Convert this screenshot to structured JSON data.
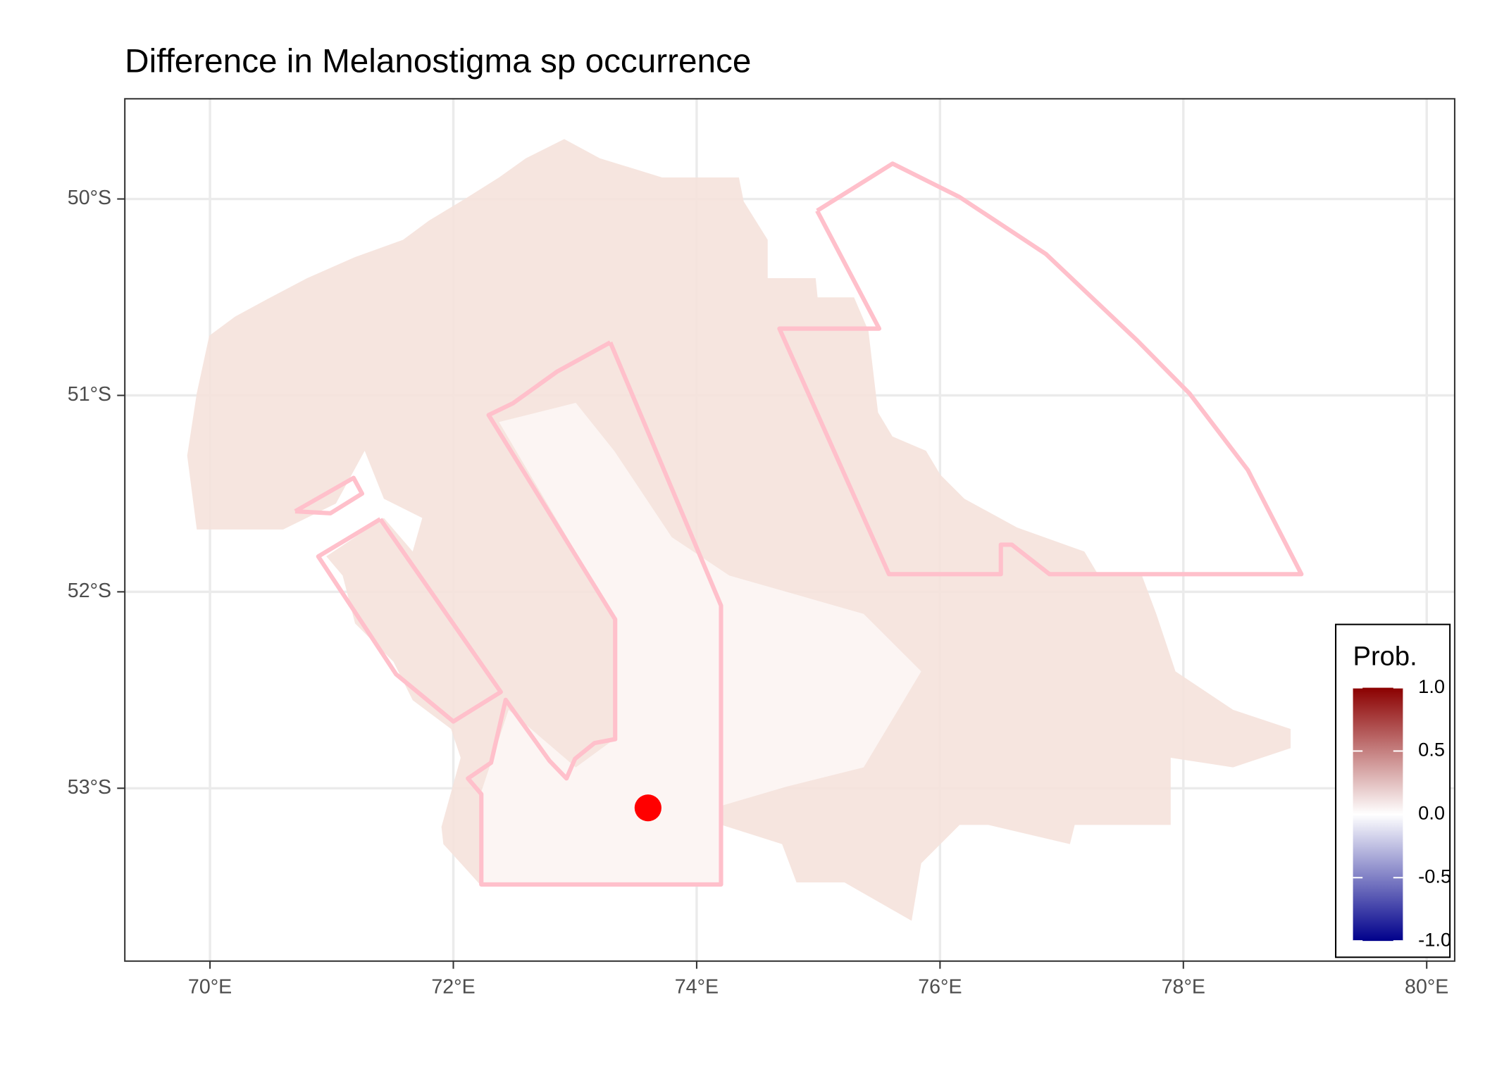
{
  "chart_data": {
    "type": "map",
    "title": "Difference in  Melanostigma sp occurrence",
    "xlim": [
      69.3,
      80.23
    ],
    "ylim": [
      -53.88,
      -49.49
    ],
    "xticks": [
      {
        "value": 70,
        "label": "70°E"
      },
      {
        "value": 72,
        "label": "72°E"
      },
      {
        "value": 74,
        "label": "74°E"
      },
      {
        "value": 76,
        "label": "76°E"
      },
      {
        "value": 78,
        "label": "78°E"
      },
      {
        "value": 80,
        "label": "80°E"
      }
    ],
    "yticks": [
      {
        "value": -50,
        "label": "50°S"
      },
      {
        "value": -51,
        "label": "51°S"
      },
      {
        "value": -52,
        "label": "52°S"
      },
      {
        "value": -53,
        "label": "53°S"
      }
    ],
    "grid": true,
    "outline_color": "#ffc0cb",
    "outlines": [
      {
        "lon": [
          74.99,
          75.61,
          76.16,
          76.87,
          77.62,
          78.05,
          78.53,
          78.97,
          76.9,
          76.59,
          76.5,
          76.5,
          75.58,
          74.68,
          75.5,
          74.99
        ],
        "lat": [
          -50.06,
          -49.82,
          -49.99,
          -50.28,
          -50.72,
          -50.99,
          -51.38,
          -51.91,
          -51.91,
          -51.76,
          -51.76,
          -51.91,
          -51.91,
          -50.66,
          -50.66,
          -50.06
        ]
      },
      {
        "lon": [
          73.29,
          74.2,
          74.2,
          72.23,
          72.23,
          72.12,
          72.31,
          72.43,
          72.79,
          72.93,
          73.0,
          73.16,
          73.33,
          73.33,
          72.29,
          72.49,
          72.85,
          73.29
        ],
        "lat": [
          -50.73,
          -52.07,
          -53.49,
          -53.49,
          -53.03,
          -52.95,
          -52.87,
          -52.55,
          -52.86,
          -52.95,
          -52.85,
          -52.77,
          -52.75,
          -52.14,
          -51.1,
          -51.04,
          -50.88,
          -50.73
        ]
      },
      {
        "lon": [
          71.4,
          72.39,
          72.0,
          71.53,
          70.89,
          71.4
        ],
        "lat": [
          -51.63,
          -52.51,
          -52.66,
          -52.42,
          -51.82,
          -51.63
        ]
      },
      {
        "lon": [
          70.7,
          71.18,
          71.25,
          70.99,
          70.7
        ],
        "lat": [
          -51.59,
          -51.42,
          -51.5,
          -51.6,
          -51.59
        ]
      }
    ],
    "point": {
      "lon": 73.6,
      "lat": -53.1,
      "color": "#ff0000"
    },
    "legend": {
      "title": "Prob.",
      "colors": [
        "#00008b",
        "#ffffff",
        "#8b0000"
      ],
      "ticks": [
        {
          "value": 1,
          "label": "1.0"
        },
        0.5,
        {
          "value": 0,
          "label": "0.0"
        },
        -0.5,
        {
          "value": -1,
          "label": "-1.0"
        }
      ]
    }
  }
}
